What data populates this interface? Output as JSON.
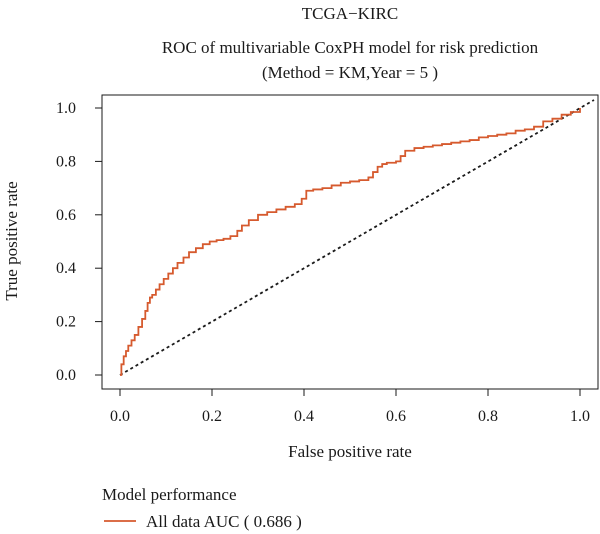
{
  "chart_data": {
    "type": "line",
    "title": "TCGA−KIRC",
    "subtitle_line1": "ROC of multivariable CoxPH model for risk prediction",
    "subtitle_line2": "(Method = KM,Year = 5 )",
    "xlabel": "False positive rate",
    "ylabel": "True positive rate",
    "xlim": [
      0,
      1
    ],
    "ylim": [
      0,
      1
    ],
    "x_ticks": [
      "0.0",
      "0.2",
      "0.4",
      "0.6",
      "0.8",
      "1.0"
    ],
    "y_ticks": [
      "0.0",
      "0.2",
      "0.4",
      "0.6",
      "0.8",
      "1.0"
    ],
    "grid": false,
    "legend": {
      "title": "Model performance",
      "placement": "bottom-left",
      "entries": [
        "All data AUC ( 0.686 )"
      ]
    },
    "colors": {
      "series": "#d65a2e",
      "reference": "#1a1a1a",
      "text": "#1a1a1a"
    },
    "series": [
      {
        "name": "All data AUC ( 0.686 )",
        "x": [
          0.0,
          0.003,
          0.008,
          0.013,
          0.018,
          0.025,
          0.032,
          0.04,
          0.048,
          0.055,
          0.06,
          0.065,
          0.07,
          0.078,
          0.086,
          0.095,
          0.105,
          0.115,
          0.125,
          0.138,
          0.15,
          0.165,
          0.18,
          0.195,
          0.21,
          0.225,
          0.24,
          0.255,
          0.265,
          0.28,
          0.3,
          0.32,
          0.34,
          0.36,
          0.38,
          0.395,
          0.405,
          0.42,
          0.44,
          0.46,
          0.48,
          0.5,
          0.52,
          0.54,
          0.55,
          0.56,
          0.57,
          0.58,
          0.6,
          0.61,
          0.62,
          0.64,
          0.66,
          0.68,
          0.7,
          0.72,
          0.74,
          0.76,
          0.78,
          0.8,
          0.82,
          0.84,
          0.86,
          0.88,
          0.9,
          0.92,
          0.94,
          0.96,
          0.98,
          1.0
        ],
        "y": [
          0.0,
          0.04,
          0.07,
          0.09,
          0.11,
          0.13,
          0.15,
          0.18,
          0.21,
          0.24,
          0.27,
          0.29,
          0.3,
          0.32,
          0.34,
          0.36,
          0.38,
          0.4,
          0.42,
          0.44,
          0.46,
          0.475,
          0.49,
          0.5,
          0.505,
          0.51,
          0.52,
          0.54,
          0.56,
          0.58,
          0.6,
          0.61,
          0.62,
          0.63,
          0.64,
          0.66,
          0.69,
          0.695,
          0.7,
          0.71,
          0.72,
          0.725,
          0.73,
          0.74,
          0.76,
          0.78,
          0.79,
          0.795,
          0.8,
          0.82,
          0.84,
          0.85,
          0.855,
          0.86,
          0.865,
          0.87,
          0.875,
          0.88,
          0.89,
          0.895,
          0.9,
          0.905,
          0.915,
          0.92,
          0.93,
          0.95,
          0.96,
          0.975,
          0.985,
          1.0
        ]
      }
    ],
    "reference_line": {
      "x": [
        0,
        1
      ],
      "y": [
        0,
        1
      ]
    }
  }
}
